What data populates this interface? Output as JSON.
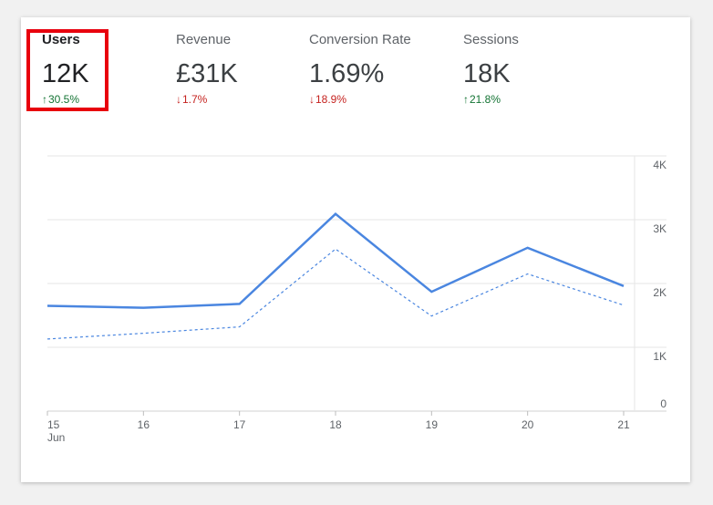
{
  "metrics": [
    {
      "label": "Users",
      "value": "12K",
      "change": "30.5%",
      "direction": "up",
      "selected": true
    },
    {
      "label": "Revenue",
      "value": "£31K",
      "change": "1.7%",
      "direction": "down",
      "selected": false
    },
    {
      "label": "Conversion Rate",
      "value": "1.69%",
      "change": "18.9%",
      "direction": "down",
      "selected": false
    },
    {
      "label": "Sessions",
      "value": "18K",
      "change": "21.8%",
      "direction": "up",
      "selected": false
    }
  ],
  "colors": {
    "line": "#4a86e0",
    "up": "#137333",
    "down": "#c5221f",
    "highlight": "#e8000d",
    "grid": "#e6e6e6"
  },
  "chart_data": {
    "type": "line",
    "x": [
      "15",
      "16",
      "17",
      "18",
      "19",
      "20",
      "21"
    ],
    "x_sublabel": "Jun",
    "series": [
      {
        "style": "solid",
        "values": [
          1650,
          1620,
          1680,
          3090,
          1870,
          2560,
          1960
        ]
      },
      {
        "style": "dashed",
        "values": [
          1130,
          1220,
          1320,
          2540,
          1490,
          2150,
          1660
        ]
      }
    ],
    "y_ticks": [
      "0",
      "1K",
      "2K",
      "3K",
      "4K"
    ],
    "ylim": [
      0,
      4000
    ],
    "grid": true,
    "yaxis_position": "right"
  }
}
